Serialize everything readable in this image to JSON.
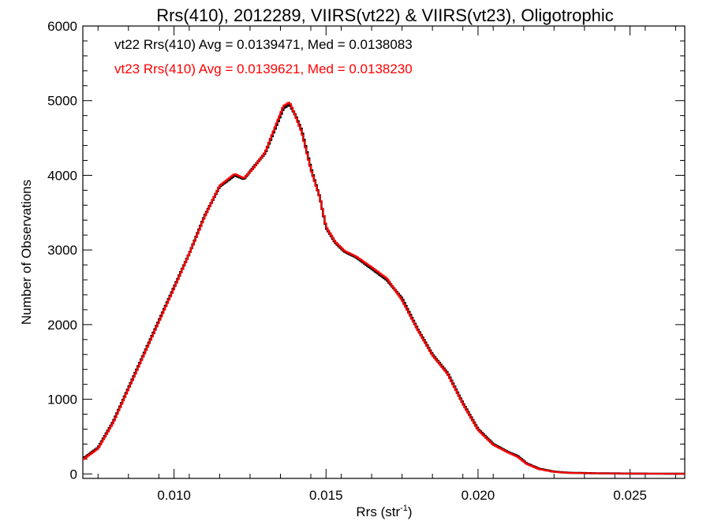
{
  "chart_data": {
    "type": "line",
    "title": "Rrs(410), 2012289, VIIRS(vt22) & VIIRS(vt23), Oligotrophic",
    "xlabel": "Rrs (str",
    "xlabel_sup": "-1",
    "xlabel_close": ")",
    "ylabel": "Number of Observations",
    "xlim": [
      0.007,
      0.0268
    ],
    "ylim": [
      -60,
      6000
    ],
    "xticks": [
      0.01,
      0.015,
      0.02,
      0.025
    ],
    "xtick_labels": [
      "0.010",
      "0.015",
      "0.020",
      "0.025"
    ],
    "yticks": [
      0,
      1000,
      2000,
      3000,
      4000,
      5000,
      6000
    ],
    "ytick_labels": [
      "0",
      "1000",
      "2000",
      "3000",
      "4000",
      "5000",
      "6000"
    ],
    "grid": false,
    "annotations": [
      {
        "text": "vt22 Rrs(410) Avg = 0.0139471, Med = 0.0138083",
        "color": "#000000"
      },
      {
        "text": "vt23 Rrs(410) Avg = 0.0139621, Med = 0.0138230",
        "color": "#ff0000"
      }
    ],
    "series": [
      {
        "color": "#000000",
        "x": [
          0.007,
          0.0075,
          0.008,
          0.0085,
          0.009,
          0.0095,
          0.01,
          0.0105,
          0.011,
          0.0115,
          0.012,
          0.0123,
          0.0126,
          0.013,
          0.0133,
          0.0136,
          0.0138,
          0.014,
          0.0142,
          0.0145,
          0.0148,
          0.015,
          0.0153,
          0.0156,
          0.016,
          0.0165,
          0.017,
          0.0175,
          0.018,
          0.0185,
          0.019,
          0.0195,
          0.02,
          0.0205,
          0.021,
          0.0213,
          0.0216,
          0.022,
          0.0225,
          0.023,
          0.024,
          0.025,
          0.026,
          0.0268
        ],
        "values": [
          200,
          350,
          700,
          1150,
          1600,
          2050,
          2500,
          2950,
          3450,
          3850,
          4000,
          3950,
          4100,
          4300,
          4600,
          4900,
          4950,
          4800,
          4600,
          4100,
          3700,
          3300,
          3100,
          2980,
          2900,
          2750,
          2600,
          2350,
          1950,
          1600,
          1350,
          950,
          600,
          400,
          290,
          240,
          140,
          70,
          30,
          15,
          8,
          5,
          3,
          2
        ]
      },
      {
        "color": "#ff0000",
        "x": [
          0.007,
          0.0075,
          0.008,
          0.0085,
          0.009,
          0.0095,
          0.01,
          0.0105,
          0.011,
          0.0115,
          0.012,
          0.0123,
          0.0126,
          0.013,
          0.0133,
          0.0136,
          0.0138,
          0.014,
          0.0142,
          0.0145,
          0.0148,
          0.015,
          0.0153,
          0.0156,
          0.016,
          0.0165,
          0.017,
          0.0175,
          0.018,
          0.0185,
          0.019,
          0.0195,
          0.02,
          0.0205,
          0.021,
          0.0213,
          0.0216,
          0.022,
          0.0225,
          0.023,
          0.024,
          0.025,
          0.026,
          0.0268
        ],
        "values": [
          190,
          340,
          690,
          1140,
          1590,
          2040,
          2490,
          2950,
          3440,
          3860,
          4020,
          3960,
          4090,
          4310,
          4620,
          4930,
          4980,
          4790,
          4580,
          4080,
          3700,
          3310,
          3110,
          2990,
          2910,
          2770,
          2620,
          2330,
          1940,
          1590,
          1340,
          940,
          590,
          390,
          285,
          230,
          135,
          65,
          28,
          14,
          8,
          5,
          3,
          2
        ]
      }
    ]
  }
}
